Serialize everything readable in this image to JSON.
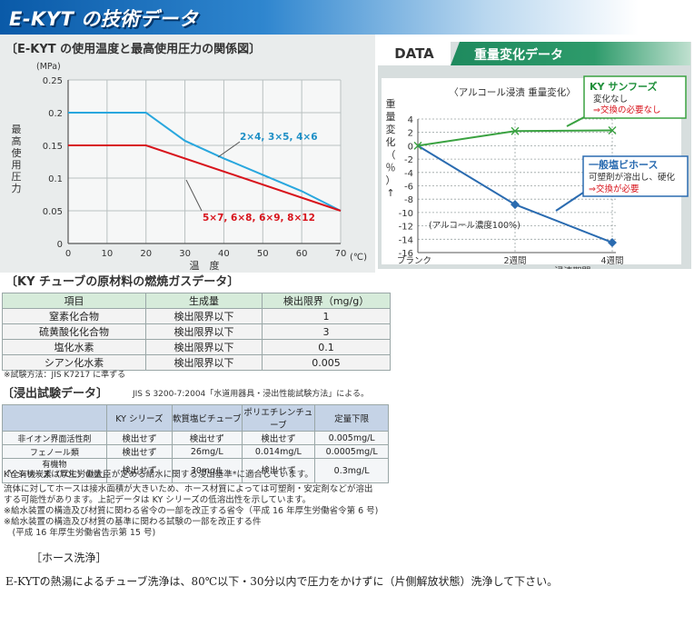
{
  "header": {
    "title": "E-KYT の技術データ"
  },
  "pressure_chart": {
    "title": "〔E-KYT の使用温度と最高使用圧力の関係図〕",
    "y_unit": "(MPa)",
    "y_label": [
      "最",
      "高",
      "使",
      "用",
      "圧",
      "力"
    ],
    "x_label": "温　度",
    "x_unit": "(℃)",
    "y_ticks": [
      "0",
      "0.05",
      "0.1",
      "0.15",
      "0.2",
      "0.25"
    ],
    "x_ticks": [
      "0",
      "10",
      "20",
      "30",
      "40",
      "50",
      "60",
      "70"
    ],
    "series_labels": [
      "2×4, 3×5, 4×6",
      "5×7, 6×8, 6×9, 8×12"
    ]
  },
  "chart_data": [
    {
      "type": "line",
      "title": "E-KYT の使用温度と最高使用圧力の関係図",
      "xlabel": "温　度 (℃)",
      "ylabel": "最高使用圧力 (MPa)",
      "xlim": [
        0,
        70
      ],
      "ylim": [
        0,
        0.25
      ],
      "series": [
        {
          "name": "2×4, 3×5, 4×6",
          "x": [
            0,
            20,
            30,
            40,
            50,
            60,
            70
          ],
          "y": [
            0.2,
            0.2,
            0.157,
            0.13,
            0.105,
            0.08,
            0.05
          ],
          "color": "#29a7de"
        },
        {
          "name": "5×7, 6×8, 6×9, 8×12",
          "x": [
            0,
            20,
            70
          ],
          "y": [
            0.15,
            0.15,
            0.05
          ],
          "color": "#d8141c"
        }
      ]
    },
    {
      "type": "line",
      "title": "〈アルコール浸漬 重量変化〉",
      "ylabel": "重量変化(%)",
      "xlabel": "→浸漬期間",
      "categories": [
        "ブランク",
        "2週間",
        "4週間"
      ],
      "ylim": [
        -16,
        4
      ],
      "series": [
        {
          "name": "KY サンフーズ",
          "values": [
            0,
            2.2,
            2.3
          ],
          "color": "#3aa241"
        },
        {
          "name": "一般塩ビホース",
          "values": [
            0,
            -8.8,
            -14.5
          ],
          "color": "#2a6bb0"
        }
      ]
    }
  ],
  "weight_chart": {
    "tab": "DATA",
    "band": "重量変化データ",
    "subtitle": "〈アルコール浸漬 重量変化〉",
    "y_label": [
      "重",
      "量",
      "変",
      "化",
      "（",
      "％",
      "）",
      "↑"
    ],
    "y_ticks": [
      "4",
      "2",
      "0",
      "-2",
      "-4",
      "-6",
      "-8",
      "-10",
      "-12",
      "-14",
      "-16"
    ],
    "x_ticks": [
      "ブランク",
      "2週間",
      "4週間"
    ],
    "x_label": "→浸漬期間",
    "concentration": "(アルコール濃度100%)",
    "legend_ky": {
      "name": "KY サンフーズ",
      "line1": "変化なし",
      "line2": "⇒交換の必要なし"
    },
    "legend_pvc": {
      "name": "一般塩ビホース",
      "line1": "可塑剤が溶出し、硬化",
      "line2": "⇒交換が必要"
    }
  },
  "combustion": {
    "title": "〔KY チューブの原材料の燃焼ガスデータ〕",
    "headers": [
      "項目",
      "生成量",
      "検出限界（mg/g）"
    ],
    "rows": [
      [
        "窒素化合物",
        "検出限界以下",
        "1"
      ],
      [
        "硫黄酸化化合物",
        "検出限界以下",
        "3"
      ],
      [
        "塩化水素",
        "検出限界以下",
        "0.1"
      ],
      [
        "シアン化水素",
        "検出限界以下",
        "0.005"
      ]
    ],
    "note": "※試験方法：JIS K7217 に準ずる"
  },
  "leach": {
    "title": "〔浸出試験データ〕",
    "standard": "JIS S 3200-7:2004「水道用器具・浸出性能試験方法」による。",
    "headers": [
      "",
      "KY シリーズ",
      "軟質塩ビチューブ",
      "ポリエチレンチューブ",
      "定量下限"
    ],
    "rows": [
      [
        "非イオン界面活性剤",
        "検出せず",
        "検出せず",
        "検出せず",
        "0.005mg/L"
      ],
      [
        "フェノール類",
        "検出せず",
        "26mg/L",
        "0.014mg/L",
        "0.0005mg/L"
      ],
      [
        "有機物",
        "検出せず",
        "30mg/L",
        "検出せず",
        "0.3mg/L"
      ]
    ],
    "row3_sub": "「全有機炭素（TOC）の量」"
  },
  "notes": {
    "ky": "KY シリーズは厚生労働大臣が定める給水に関する浸出基準*に適合しています。",
    "para": [
      "流体に対してホースは接水面積が大きいため、ホース材質によっては可塑剤・安定剤などが溶出",
      "する可能性があります。上記データは KY シリーズの低溶出性を示しています。",
      "※給水装置の構造及び材質に関わる省令の一部を改正する省令（平成 16 年厚生労働省令第 6 号)",
      "※給水装置の構造及び材質の基準に関わる試験の一部を改正する件",
      "　(平成 16 年厚生労働省告示第 15 号)"
    ]
  },
  "wash": {
    "heading": "［ホース洗浄］",
    "text": "E-KYTの熱湯によるチューブ洗浄は、80℃以下・30分以内で圧力をかけずに（片側解放状態）洗浄して下さい。"
  }
}
